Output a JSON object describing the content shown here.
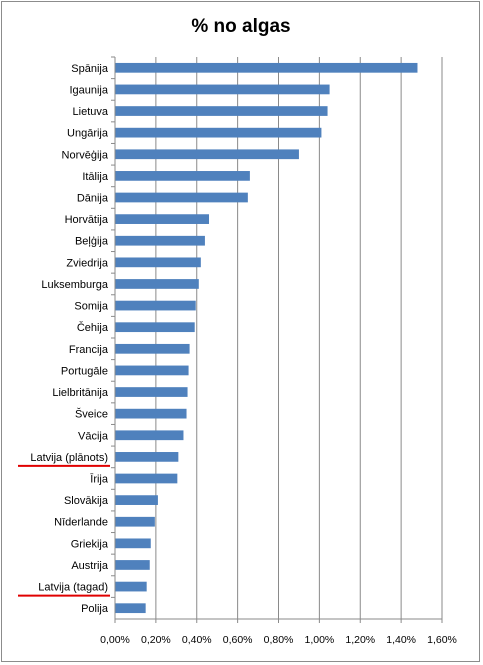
{
  "chart_data": {
    "type": "bar",
    "orientation": "horizontal",
    "title": "% no algas",
    "xlabel": "",
    "ylabel": "",
    "xlim": [
      0,
      1.6
    ],
    "grid": true,
    "legend": "none",
    "bar_color": "#4f81bd",
    "highlight_color": "#e00000",
    "highlighted_categories": [
      "Latvija (plānots)",
      "Latvija (tagad)"
    ],
    "x_ticks": [
      "0,00%",
      "0,20%",
      "0,40%",
      "0,60%",
      "0,80%",
      "1,00%",
      "1,20%",
      "1,40%",
      "1,60%"
    ],
    "categories": [
      "Spānija",
      "Igaunija",
      "Lietuva",
      "Ungārija",
      "Norvēģija",
      "Itālija",
      "Dānija",
      "Horvātija",
      "Beļģija",
      "Zviedrija",
      "Luksemburga",
      "Somija",
      "Čehija",
      "Francija",
      "Portugāle",
      "Lielbritānija",
      "Šveice",
      "Vācija",
      "Latvija (plānots)",
      "Īrija",
      "Slovākija",
      "Nīderlande",
      "Griekija",
      "Austrija",
      "Latvija (tagad)",
      "Polija"
    ],
    "values": [
      1.48,
      1.05,
      1.04,
      1.01,
      0.9,
      0.66,
      0.65,
      0.46,
      0.44,
      0.42,
      0.41,
      0.395,
      0.39,
      0.365,
      0.36,
      0.355,
      0.35,
      0.335,
      0.31,
      0.305,
      0.21,
      0.195,
      0.175,
      0.17,
      0.155,
      0.15
    ]
  }
}
